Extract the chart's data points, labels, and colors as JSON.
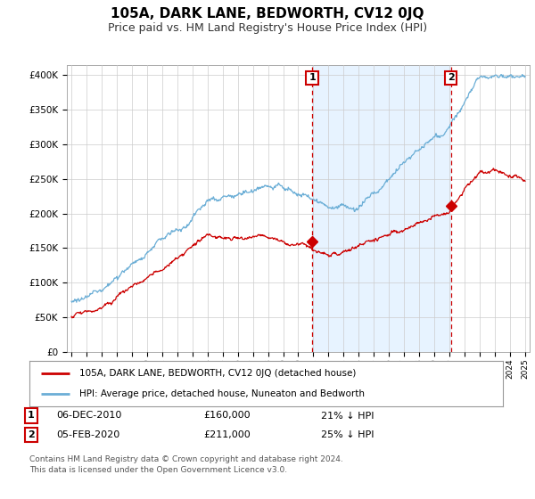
{
  "title": "105A, DARK LANE, BEDWORTH, CV12 0JQ",
  "subtitle": "Price paid vs. HM Land Registry's House Price Index (HPI)",
  "yticks": [
    0,
    50000,
    100000,
    150000,
    200000,
    250000,
    300000,
    350000,
    400000
  ],
  "ytick_labels": [
    "£0",
    "£50K",
    "£100K",
    "£150K",
    "£200K",
    "£250K",
    "£300K",
    "£350K",
    "£400K"
  ],
  "xlim_start": 1994.7,
  "xlim_end": 2025.3,
  "ylim": [
    0,
    415000
  ],
  "vline1_x": 2010.92,
  "vline2_x": 2020.09,
  "dot1_y": 160000,
  "dot2_y": 211000,
  "legend_label1": "105A, DARK LANE, BEDWORTH, CV12 0JQ (detached house)",
  "legend_label2": "HPI: Average price, detached house, Nuneaton and Bedworth",
  "footer": "Contains HM Land Registry data © Crown copyright and database right 2024.\nThis data is licensed under the Open Government Licence v3.0.",
  "table_row1": [
    "1",
    "06-DEC-2010",
    "£160,000",
    "21% ↓ HPI"
  ],
  "table_row2": [
    "2",
    "05-FEB-2020",
    "£211,000",
    "25% ↓ HPI"
  ],
  "hpi_color": "#6baed6",
  "hpi_fill_color": "#ddeeff",
  "price_color": "#cc0000",
  "vline_color": "#cc0000",
  "background_color": "#ffffff",
  "grid_color": "#cccccc",
  "title_fontsize": 11,
  "subtitle_fontsize": 9
}
